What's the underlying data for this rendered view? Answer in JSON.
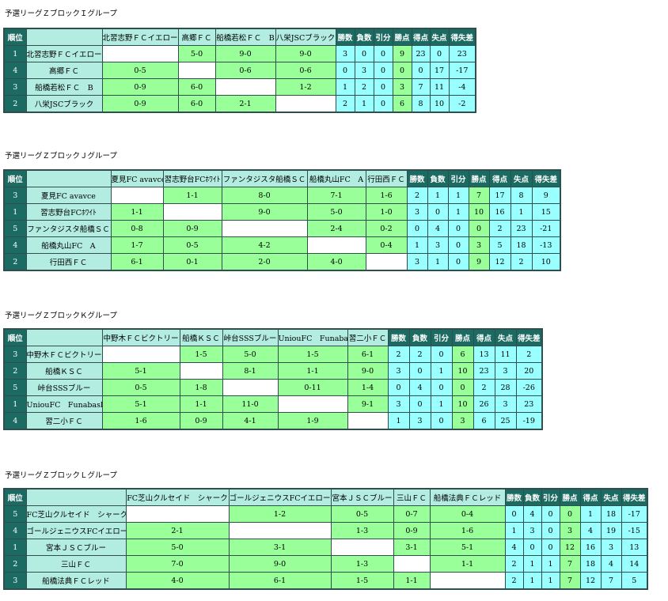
{
  "groups": [
    {
      "title": "予選リーグＺブロックＩグループ",
      "headers": {
        "rank": "順位",
        "wins": "勝数",
        "losses": "負数",
        "draws": "引分",
        "points": "勝点",
        "gf": "得点",
        "ga": "失点",
        "gd": "得失差"
      },
      "teams": [
        "北習志野ＦＣイエロー",
        "高郷ＦＣ",
        "船橋若松ＦＣ　B",
        "八栄JSCブラック"
      ],
      "rows": [
        {
          "rank": "1",
          "team": "北習志野ＦＣイエロー",
          "results": [
            "",
            "5-0",
            "9-0",
            "9-0"
          ],
          "wins": "3",
          "losses": "0",
          "draws": "0",
          "points": "9",
          "gf": "23",
          "ga": "0",
          "gd": "23"
        },
        {
          "rank": "4",
          "team": "高郷ＦＣ",
          "results": [
            "0-5",
            "",
            "0-6",
            "0-6"
          ],
          "wins": "0",
          "losses": "3",
          "draws": "0",
          "points": "0",
          "gf": "0",
          "ga": "17",
          "gd": "-17"
        },
        {
          "rank": "3",
          "team": "船橋若松ＦＣ　B",
          "results": [
            "0-9",
            "6-0",
            "",
            "1-2"
          ],
          "wins": "1",
          "losses": "2",
          "draws": "0",
          "points": "3",
          "gf": "7",
          "ga": "11",
          "gd": "-4"
        },
        {
          "rank": "2",
          "team": "八栄JSCブラック",
          "results": [
            "0-9",
            "6-0",
            "2-1",
            ""
          ],
          "wins": "2",
          "losses": "1",
          "draws": "0",
          "points": "6",
          "gf": "8",
          "ga": "10",
          "gd": "-2"
        }
      ]
    },
    {
      "title": "予選リーグＺブロックＪグループ",
      "headers": {
        "rank": "順位",
        "wins": "勝数",
        "losses": "負数",
        "draws": "引分",
        "points": "勝点",
        "gf": "得点",
        "ga": "失点",
        "gd": "得失差"
      },
      "teams": [
        "夏見FC avavce",
        "習志野台FCﾎﾜｲﾄ",
        "ファンタジスタ船橋ＳＣ",
        "船橋丸山FC　A",
        "行田西ＦＣ"
      ],
      "rows": [
        {
          "rank": "3",
          "team": "夏見FC avavce",
          "results": [
            "",
            "1-1",
            "8-0",
            "7-1",
            "1-6"
          ],
          "wins": "2",
          "losses": "1",
          "draws": "1",
          "points": "7",
          "gf": "17",
          "ga": "8",
          "gd": "9"
        },
        {
          "rank": "1",
          "team": "習志野台FCﾎﾜｲﾄ",
          "results": [
            "1-1",
            "",
            "9-0",
            "5-0",
            "1-0"
          ],
          "wins": "3",
          "losses": "0",
          "draws": "1",
          "points": "10",
          "gf": "16",
          "ga": "1",
          "gd": "15"
        },
        {
          "rank": "5",
          "team": "ファンタジスタ船橋ＳＣ",
          "results": [
            "0-8",
            "0-9",
            "",
            "2-4",
            "0-2"
          ],
          "wins": "0",
          "losses": "4",
          "draws": "0",
          "points": "0",
          "gf": "2",
          "ga": "23",
          "gd": "-21"
        },
        {
          "rank": "4",
          "team": "船橋丸山FC　A",
          "results": [
            "1-7",
            "0-5",
            "4-2",
            "",
            "0-4"
          ],
          "wins": "1",
          "losses": "3",
          "draws": "0",
          "points": "3",
          "gf": "5",
          "ga": "18",
          "gd": "-13"
        },
        {
          "rank": "2",
          "team": "行田西ＦＣ",
          "results": [
            "6-1",
            "0-1",
            "2-0",
            "4-0",
            ""
          ],
          "wins": "3",
          "losses": "1",
          "draws": "0",
          "points": "9",
          "gf": "12",
          "ga": "2",
          "gd": "10"
        }
      ]
    },
    {
      "title": "予選リーグＺブロックＫグループ",
      "headers": {
        "rank": "順位",
        "wins": "勝数",
        "losses": "負数",
        "draws": "引分",
        "points": "勝点",
        "gf": "得点",
        "ga": "失点",
        "gd": "得失差"
      },
      "teams": [
        "中野木ＦＣビクトリー",
        "船橋ＫＳＣ",
        "峠台SSSブルー",
        "UniouFC　Funabashi",
        "習二小ＦＣ"
      ],
      "rows": [
        {
          "rank": "3",
          "team": "中野木ＦＣビクトリー",
          "results": [
            "",
            "1-5",
            "5-0",
            "1-5",
            "6-1"
          ],
          "wins": "2",
          "losses": "2",
          "draws": "0",
          "points": "6",
          "gf": "13",
          "ga": "11",
          "gd": "2"
        },
        {
          "rank": "2",
          "team": "船橋ＫＳＣ",
          "results": [
            "5-1",
            "",
            "8-1",
            "1-1",
            "9-0"
          ],
          "wins": "3",
          "losses": "0",
          "draws": "1",
          "points": "10",
          "gf": "23",
          "ga": "3",
          "gd": "20"
        },
        {
          "rank": "5",
          "team": "峠台SSSブルー",
          "results": [
            "0-5",
            "1-8",
            "",
            "0-11",
            "1-4"
          ],
          "wins": "0",
          "losses": "4",
          "draws": "0",
          "points": "0",
          "gf": "2",
          "ga": "28",
          "gd": "-26"
        },
        {
          "rank": "1",
          "team": "UniouFC　Funabashi",
          "results": [
            "5-1",
            "1-1",
            "11-0",
            "",
            "9-1"
          ],
          "wins": "3",
          "losses": "0",
          "draws": "1",
          "points": "10",
          "gf": "26",
          "ga": "3",
          "gd": "23"
        },
        {
          "rank": "4",
          "team": "習二小ＦＣ",
          "results": [
            "1-6",
            "0-9",
            "4-1",
            "1-9",
            ""
          ],
          "wins": "1",
          "losses": "3",
          "draws": "0",
          "points": "3",
          "gf": "6",
          "ga": "25",
          "gd": "-19"
        }
      ]
    },
    {
      "title": "予選リーグＺブロックＬグループ",
      "headers": {
        "rank": "順位",
        "wins": "勝数",
        "losses": "負数",
        "draws": "引分",
        "points": "勝点",
        "gf": "得点",
        "ga": "失点",
        "gd": "得失差"
      },
      "teams": [
        "FC芝山クルセイド　シャーク",
        "ゴールジェニウスFCイエロー",
        "宮本ＪＳＣブルー",
        "三山ＦＣ",
        "船橋法典ＦＣレッド"
      ],
      "rows": [
        {
          "rank": "5",
          "team": "FC芝山クルセイド　シャーク",
          "results": [
            "",
            "1-2",
            "0-5",
            "0-7",
            "0-4"
          ],
          "wins": "0",
          "losses": "4",
          "draws": "0",
          "points": "0",
          "gf": "1",
          "ga": "18",
          "gd": "-17"
        },
        {
          "rank": "4",
          "team": "ゴールジェニウスFCイエロー",
          "results": [
            "2-1",
            "",
            "1-3",
            "0-9",
            "1-6"
          ],
          "wins": "1",
          "losses": "3",
          "draws": "0",
          "points": "3",
          "gf": "4",
          "ga": "19",
          "gd": "-15"
        },
        {
          "rank": "1",
          "team": "宮本ＪＳＣブルー",
          "results": [
            "5-0",
            "3-1",
            "",
            "3-1",
            "5-1"
          ],
          "wins": "4",
          "losses": "0",
          "draws": "0",
          "points": "12",
          "gf": "16",
          "ga": "3",
          "gd": "13"
        },
        {
          "rank": "2",
          "team": "三山ＦＣ",
          "results": [
            "7-0",
            "9-0",
            "1-3",
            "",
            "1-1"
          ],
          "wins": "2",
          "losses": "1",
          "draws": "1",
          "points": "7",
          "gf": "18",
          "ga": "4",
          "gd": "14"
        },
        {
          "rank": "3",
          "team": "船橋法典ＦＣレッド",
          "results": [
            "4-0",
            "6-1",
            "1-5",
            "1-1",
            ""
          ],
          "wins": "2",
          "losses": "1",
          "draws": "1",
          "points": "7",
          "gf": "12",
          "ga": "7",
          "gd": "5"
        }
      ]
    }
  ]
}
